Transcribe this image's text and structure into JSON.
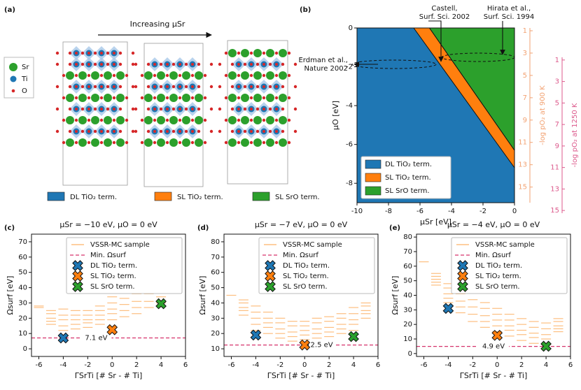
{
  "figure": {
    "panel_labels": [
      "(a)",
      "(b)",
      "(c)",
      "(d)",
      "(e)"
    ]
  },
  "structure": {
    "arrow_label": "Increasing μSr",
    "atoms": [
      {
        "name": "Sr",
        "color": "#2ca02c"
      },
      {
        "name": "Ti",
        "color": "#1f77b4"
      },
      {
        "name": "O",
        "color": "#d62728"
      }
    ],
    "terminations": [
      {
        "name": "DL TiO₂ term.",
        "color": "#1f77b4"
      },
      {
        "name": "SL TiO₂ term.",
        "color": "#ff7f0e"
      },
      {
        "name": "SL SrO term.",
        "color": "#2ca02c"
      }
    ]
  },
  "chart_data": [
    {
      "type": "phase",
      "xlabel": "μSr [eV]",
      "ylabel": "μO [eV]",
      "xlim": [
        -10,
        0
      ],
      "xticks": [
        -10,
        -8,
        -6,
        -4,
        -2,
        0
      ],
      "ylim": [
        -9,
        0
      ],
      "yticks": [
        -8,
        -6,
        -4,
        -2,
        0
      ],
      "series": [
        {
          "name": "DL TiO₂ term.",
          "color": "#1f77b4"
        },
        {
          "name": "SL TiO₂ term.",
          "color": "#ff7f0e"
        },
        {
          "name": "SL SrO term.",
          "color": "#2ca02c"
        }
      ],
      "boundaries": [
        {
          "x": [
            -6.4,
            0
          ],
          "values": [
            0,
            -7.2
          ]
        },
        {
          "x": [
            -5.4,
            0
          ],
          "values": [
            0,
            -6.3
          ]
        }
      ],
      "legend": "lower left",
      "y2label": "-log pO₂ at 900 K",
      "y2lim": [
        0.75,
        16.4
      ],
      "y2ticks": [
        1,
        3,
        5,
        7,
        9,
        11,
        13,
        15
      ],
      "y2color": "#f2a272",
      "y3label": "-log pO₂ at 1250 K",
      "y3lim": [
        0.75,
        15.25
      ],
      "y3ticks": [
        1,
        3,
        5,
        7,
        9,
        11,
        13,
        15
      ],
      "y3color": "#dc5a8c",
      "annotations": [
        {
          "lines": [
            "Castell,",
            "Surf. Sci. 2002"
          ]
        },
        {
          "lines": [
            "Hirata et al.,",
            "Surf. Sci. 1994"
          ]
        },
        {
          "lines": [
            "Erdman et al.,",
            "Nature 2002"
          ]
        }
      ]
    },
    {
      "type": "energy",
      "title": "μSr = −10 eV, μO = 0 eV",
      "xlabel": "ΓSrTi [# Sr - # Ti]",
      "ylabel": "Ωsurf [eV]",
      "xlim": [
        -6.6,
        6
      ],
      "xticks": [
        -6,
        -4,
        -2,
        0,
        2,
        4,
        6
      ],
      "ylim": [
        -5,
        75
      ],
      "yticks": [
        0,
        10,
        20,
        30,
        40,
        50,
        60,
        70
      ],
      "legend": "upper right",
      "series": [
        {
          "name": "VSSR-MC sample",
          "color": "#fdbf80",
          "marker": "hline",
          "x": [
            -6,
            -5,
            -4,
            -3,
            -2,
            -1,
            0,
            1,
            2,
            3,
            4,
            5
          ],
          "values": [
            [
              27,
              28
            ],
            [
              16,
              18,
              20,
              23,
              25
            ],
            [
              12,
              15,
              19,
              22,
              26
            ],
            [
              13,
              16,
              19,
              22,
              25
            ],
            [
              14,
              17,
              19,
              22,
              25
            ],
            [
              16,
              19,
              22,
              25,
              28
            ],
            [
              19,
              23,
              26,
              30,
              34
            ],
            [
              21,
              25,
              29,
              33,
              37
            ],
            [
              23,
              27,
              31,
              36,
              40
            ],
            [
              27,
              31,
              36,
              40,
              45
            ],
            [
              30,
              34,
              37,
              41,
              45
            ],
            [
              45,
              48,
              50,
              53,
              56
            ]
          ]
        },
        {
          "name": "Min. Ωsurf",
          "color": "#d6336c",
          "marker": "hdash",
          "values": [
            7.1
          ],
          "value_labels": [
            "7.1 eV"
          ]
        },
        {
          "name": "DL TiO₂ term.",
          "color": "#1f77b4",
          "marker": "x",
          "x": [
            -4
          ],
          "values": [
            7.1
          ]
        },
        {
          "name": "SL TiO₂ term.",
          "color": "#ff7f0e",
          "marker": "x",
          "x": [
            0
          ],
          "values": [
            12.5
          ]
        },
        {
          "name": "SL SrO term.",
          "color": "#2ca02c",
          "marker": "x",
          "x": [
            4
          ],
          "values": [
            29.5
          ]
        }
      ]
    },
    {
      "type": "energy",
      "title": "μSr = −7 eV, μO = 0 eV",
      "xlabel": "ΓSrTi [# Sr - # Ti]",
      "ylabel": "Ωsurf [eV]",
      "xlim": [
        -6.6,
        6
      ],
      "xticks": [
        -6,
        -4,
        -2,
        0,
        2,
        4,
        6
      ],
      "ylim": [
        5,
        85
      ],
      "yticks": [
        10,
        20,
        30,
        40,
        50,
        60,
        70,
        80
      ],
      "legend": "upper right",
      "series": [
        {
          "name": "VSSR-MC sample",
          "color": "#fdbf80",
          "marker": "hline",
          "x": [
            -6,
            -5,
            -4,
            -3,
            -2,
            -1,
            0,
            1,
            2,
            3,
            4,
            5
          ],
          "values": [
            [
              45
            ],
            [
              32,
              35,
              37,
              40,
              42
            ],
            [
              22,
              26,
              30,
              34,
              38
            ],
            [
              20,
              24,
              27,
              30,
              34
            ],
            [
              17,
              20,
              23,
              27,
              30
            ],
            [
              15,
              18,
              21,
              25,
              28
            ],
            [
              16,
              19,
              22,
              25,
              28
            ],
            [
              17,
              20,
              23,
              27,
              30
            ],
            [
              18,
              21,
              24,
              28,
              31
            ],
            [
              20,
              23,
              26,
              30,
              33
            ],
            [
              22,
              26,
              29,
              33,
              37
            ],
            [
              30,
              33,
              35,
              38,
              40
            ]
          ]
        },
        {
          "name": "Min. Ωsurf",
          "color": "#d6336c",
          "marker": "hdash",
          "values": [
            12.5
          ],
          "value_labels": [
            "12.5 eV"
          ]
        },
        {
          "name": "DL TiO₂ term.",
          "color": "#1f77b4",
          "marker": "x",
          "x": [
            -4
          ],
          "values": [
            19
          ]
        },
        {
          "name": "SL TiO₂ term.",
          "color": "#ff7f0e",
          "marker": "x",
          "x": [
            0
          ],
          "values": [
            12.5
          ]
        },
        {
          "name": "SL SrO term.",
          "color": "#2ca02c",
          "marker": "x",
          "x": [
            4
          ],
          "values": [
            18
          ]
        }
      ]
    },
    {
      "type": "energy",
      "title": "μSr = −4 eV, μO = 0 eV",
      "xlabel": "ΓSrTi [# Sr - # Ti]",
      "ylabel": "Ωsurf [eV]",
      "xlim": [
        -6.6,
        6
      ],
      "xticks": [
        -6,
        -4,
        -2,
        0,
        2,
        4,
        6
      ],
      "ylim": [
        -2,
        82
      ],
      "yticks": [
        0,
        10,
        20,
        30,
        40,
        50,
        60,
        70,
        80
      ],
      "legend": "upper right",
      "series": [
        {
          "name": "VSSR-MC sample",
          "color": "#fdbf80",
          "marker": "hline",
          "x": [
            -6,
            -5,
            -4,
            -3,
            -2,
            -1,
            0,
            1,
            2,
            3,
            4,
            5
          ],
          "values": [
            [
              63
            ],
            [
              47,
              49,
              51,
              53,
              55
            ],
            [
              35,
              38,
              41,
              45,
              48
            ],
            [
              28,
              32,
              36,
              41,
              45
            ],
            [
              22,
              27,
              32,
              37,
              42
            ],
            [
              18,
              22,
              26,
              31,
              35
            ],
            [
              15,
              19,
              23,
              27,
              31
            ],
            [
              12,
              16,
              19,
              23,
              27
            ],
            [
              9,
              13,
              16,
              20,
              24
            ],
            [
              7,
              11,
              14,
              18,
              22
            ],
            [
              6,
              10,
              13,
              17,
              21
            ],
            [
              15,
              17,
              19,
              22,
              24
            ]
          ]
        },
        {
          "name": "Min. Ωsurf",
          "color": "#d6336c",
          "marker": "hdash",
          "values": [
            4.9
          ],
          "value_labels": [
            "4.9 eV"
          ]
        },
        {
          "name": "DL TiO₂ term.",
          "color": "#1f77b4",
          "marker": "x",
          "x": [
            -4
          ],
          "values": [
            31
          ]
        },
        {
          "name": "SL TiO₂ term.",
          "color": "#ff7f0e",
          "marker": "x",
          "x": [
            0
          ],
          "values": [
            12.5
          ]
        },
        {
          "name": "SL SrO term.",
          "color": "#2ca02c",
          "marker": "x",
          "x": [
            4
          ],
          "values": [
            5
          ]
        }
      ]
    }
  ]
}
